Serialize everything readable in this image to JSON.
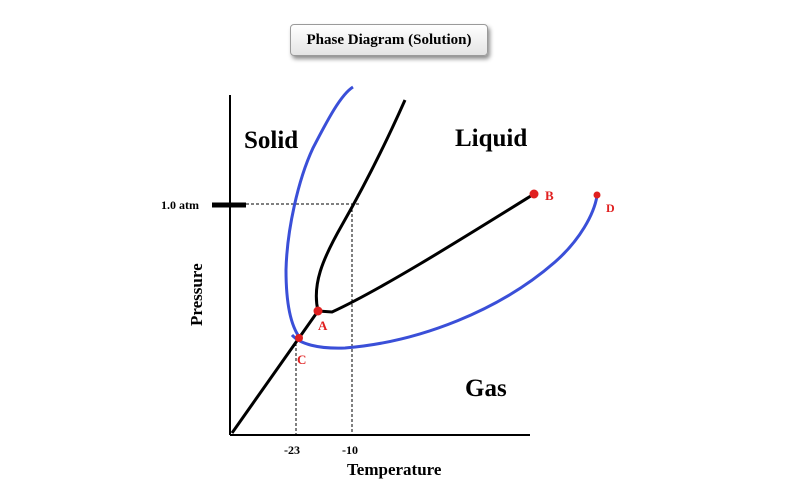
{
  "title": "Phase Diagram (Solution)",
  "regions": {
    "solid": "Solid",
    "liquid": "Liquid",
    "gas": "Gas"
  },
  "axes": {
    "x_label": "Temperature",
    "y_label": "Pressure"
  },
  "pressure_marker": "1.0 atm",
  "temperature_ticks": [
    "-23",
    "-10"
  ],
  "points": {
    "a": "A",
    "b": "B",
    "c": "C",
    "d": "D"
  },
  "colors": {
    "pure_curves": "#000000",
    "solution_curves": "#3a4fd8",
    "points": "#e02020",
    "point_labels": "#e02020"
  }
}
